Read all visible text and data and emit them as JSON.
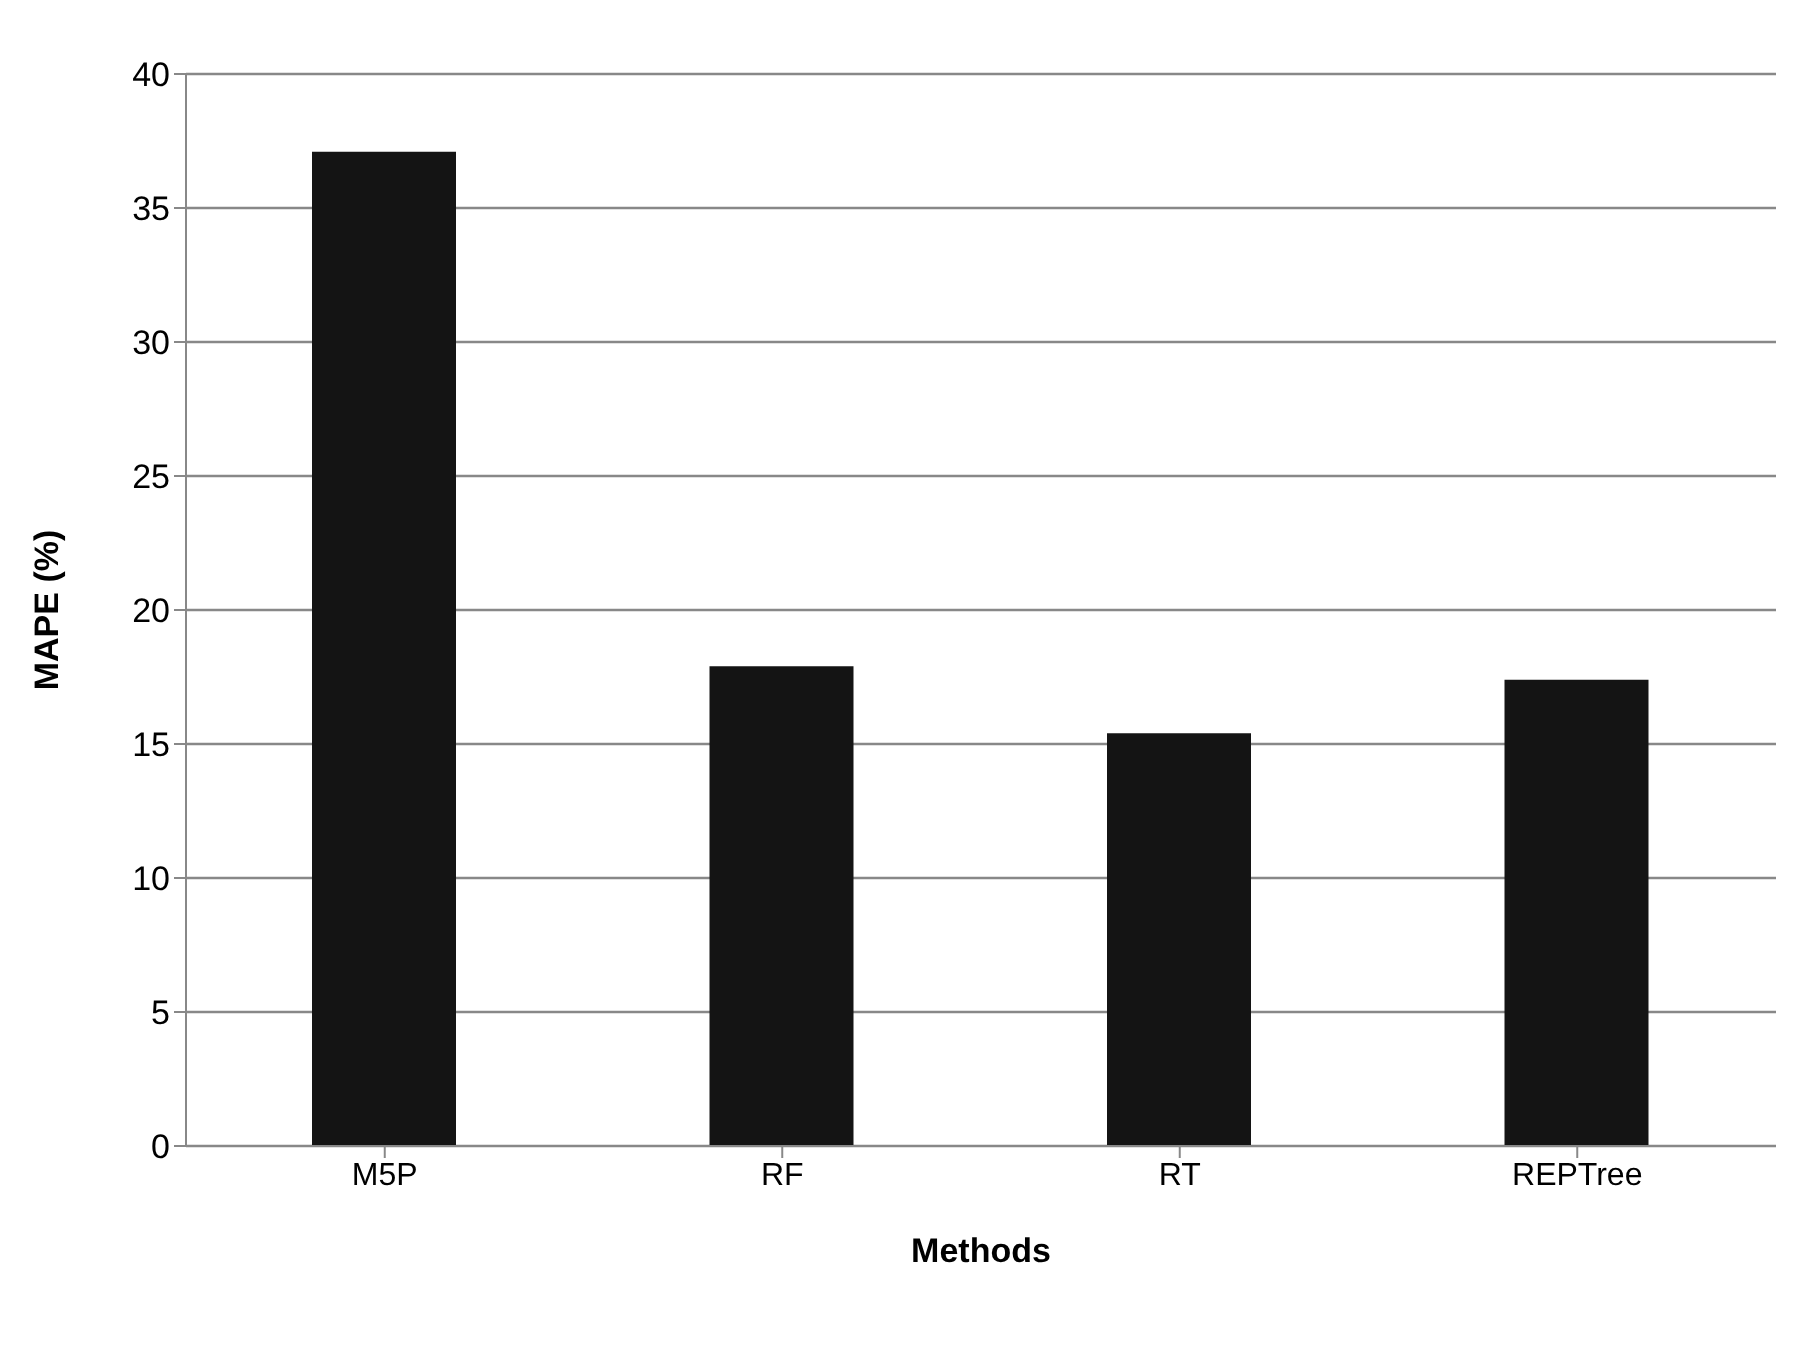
{
  "chart_data": {
    "type": "bar",
    "xlabel": "Methods",
    "ylabel": "MAPE (%)",
    "categories": [
      "M5P",
      "RF",
      "RT",
      "REPTree"
    ],
    "values": [
      37.1,
      17.9,
      15.4,
      17.4
    ],
    "color": "#141414",
    "ylim": [
      0,
      40
    ],
    "yticks": [
      0,
      5,
      10,
      15,
      20,
      25,
      30,
      35,
      40
    ],
    "grid": "y"
  }
}
